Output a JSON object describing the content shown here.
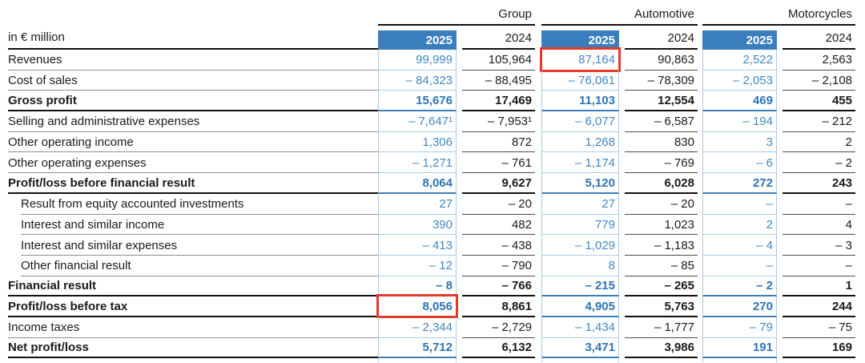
{
  "table": {
    "unit_label": "in € million",
    "year_current": "2025",
    "year_previous": "2024",
    "groups": [
      {
        "label": "Group"
      },
      {
        "label": "Automotive"
      },
      {
        "label": "Motorcycles"
      }
    ],
    "column_keys": [
      "group_2025",
      "group_2024",
      "auto_2025",
      "auto_2024",
      "moto_2025",
      "moto_2024"
    ],
    "rows": [
      {
        "label": "Revenues",
        "bold": false,
        "indent": false,
        "highlight": [
          "auto_2025"
        ],
        "values": {
          "group_2025": "99,999",
          "group_2024": "105,964",
          "auto_2025": "87,164",
          "auto_2024": "90,863",
          "moto_2025": "2,522",
          "moto_2024": "2,563"
        }
      },
      {
        "label": "Cost of sales",
        "bold": false,
        "indent": false,
        "values": {
          "group_2025": "– 84,323",
          "group_2024": "– 88,495",
          "auto_2025": "– 76,061",
          "auto_2024": "– 78,309",
          "moto_2025": "– 2,053",
          "moto_2024": "– 2,108"
        }
      },
      {
        "label": "Gross profit",
        "bold": true,
        "indent": false,
        "values": {
          "group_2025": "15,676",
          "group_2024": "17,469",
          "auto_2025": "11,103",
          "auto_2024": "12,554",
          "moto_2025": "469",
          "moto_2024": "455"
        }
      },
      {
        "label": "Selling and administrative expenses",
        "bold": false,
        "indent": false,
        "values": {
          "group_2025": "– 7,647¹",
          "group_2024": "– 7,953¹",
          "auto_2025": "– 6,077",
          "auto_2024": "– 6,587",
          "moto_2025": "– 194",
          "moto_2024": "– 212"
        }
      },
      {
        "label": "Other operating income",
        "bold": false,
        "indent": false,
        "values": {
          "group_2025": "1,306",
          "group_2024": "872",
          "auto_2025": "1,268",
          "auto_2024": "830",
          "moto_2025": "3",
          "moto_2024": "2"
        }
      },
      {
        "label": "Other operating expenses",
        "bold": false,
        "indent": false,
        "values": {
          "group_2025": "– 1,271",
          "group_2024": "– 761",
          "auto_2025": "– 1,174",
          "auto_2024": "– 769",
          "moto_2025": "– 6",
          "moto_2024": "– 2"
        }
      },
      {
        "label": "Profit/loss before financial result",
        "bold": true,
        "indent": false,
        "values": {
          "group_2025": "8,064",
          "group_2024": "9,627",
          "auto_2025": "5,120",
          "auto_2024": "6,028",
          "moto_2025": "272",
          "moto_2024": "243"
        }
      },
      {
        "label": "Result from equity accounted investments",
        "bold": false,
        "indent": true,
        "values": {
          "group_2025": "27",
          "group_2024": "– 20",
          "auto_2025": "27",
          "auto_2024": "– 20",
          "moto_2025": "–",
          "moto_2024": "–"
        }
      },
      {
        "label": "Interest and similar income",
        "bold": false,
        "indent": true,
        "values": {
          "group_2025": "390",
          "group_2024": "482",
          "auto_2025": "779",
          "auto_2024": "1,023",
          "moto_2025": "2",
          "moto_2024": "4"
        }
      },
      {
        "label": "Interest and similar expenses",
        "bold": false,
        "indent": true,
        "values": {
          "group_2025": "– 413",
          "group_2024": "– 438",
          "auto_2025": "– 1,029",
          "auto_2024": "– 1,183",
          "moto_2025": "– 4",
          "moto_2024": "– 3"
        }
      },
      {
        "label": "Other financial result",
        "bold": false,
        "indent": true,
        "values": {
          "group_2025": "– 12",
          "group_2024": "– 790",
          "auto_2025": "8",
          "auto_2024": "– 85",
          "moto_2025": "–",
          "moto_2024": "–"
        }
      },
      {
        "label": "Financial result",
        "bold": true,
        "indent": false,
        "values": {
          "group_2025": "– 8",
          "group_2024": "– 766",
          "auto_2025": "– 215",
          "auto_2024": "– 265",
          "moto_2025": "– 2",
          "moto_2024": "1"
        }
      },
      {
        "label": "Profit/loss before tax",
        "bold": true,
        "indent": false,
        "highlight": [
          "group_2025"
        ],
        "values": {
          "group_2025": "8,056",
          "group_2024": "8,861",
          "auto_2025": "4,905",
          "auto_2024": "5,763",
          "moto_2025": "270",
          "moto_2024": "244"
        }
      },
      {
        "label": "Income taxes",
        "bold": false,
        "indent": false,
        "values": {
          "group_2025": "– 2,344",
          "group_2024": "– 2,729",
          "auto_2025": "– 1,434",
          "auto_2024": "– 1,777",
          "moto_2025": "– 79",
          "moto_2024": "– 75"
        }
      },
      {
        "label": "Net profit/loss",
        "bold": true,
        "indent": false,
        "values": {
          "group_2025": "5,712",
          "group_2024": "6,132",
          "auto_2025": "3,471",
          "auto_2024": "3,986",
          "moto_2025": "191",
          "moto_2024": "169"
        }
      }
    ],
    "colors": {
      "accent_blue": "#3b7ebd",
      "value_blue": "#4089c5",
      "band_line_blue": "#aacbe7",
      "highlight_red": "#e23b2b",
      "rule_dark": "#111111",
      "rule_gray": "#8d8d8d"
    }
  }
}
